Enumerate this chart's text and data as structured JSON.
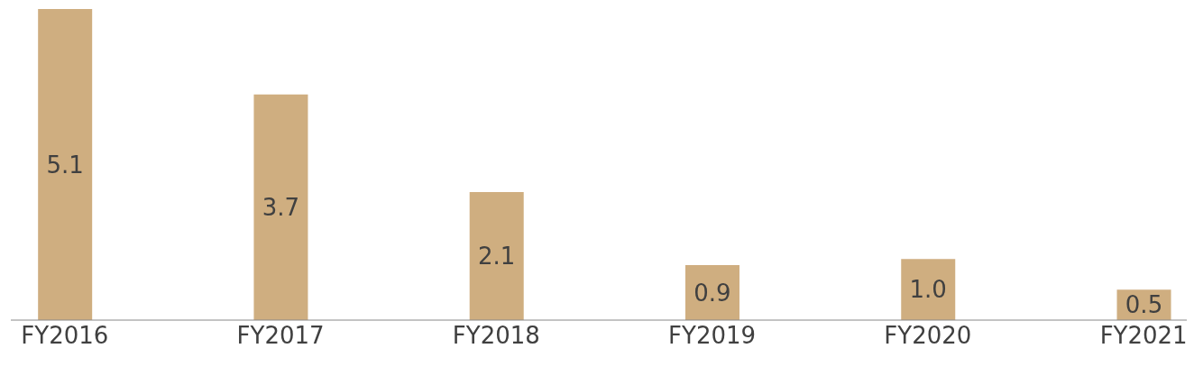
{
  "chart_data": {
    "type": "bar",
    "categories": [
      "FY2016",
      "FY2017",
      "FY2018",
      "FY2019",
      "FY2020",
      "FY2021"
    ],
    "values": [
      5.1,
      3.7,
      2.1,
      0.9,
      1.0,
      0.5
    ],
    "value_labels": [
      "5.1",
      "3.7",
      "2.1",
      "0.9",
      "1.0",
      "0.5"
    ],
    "color": "#cfae80",
    "grid": false
  }
}
